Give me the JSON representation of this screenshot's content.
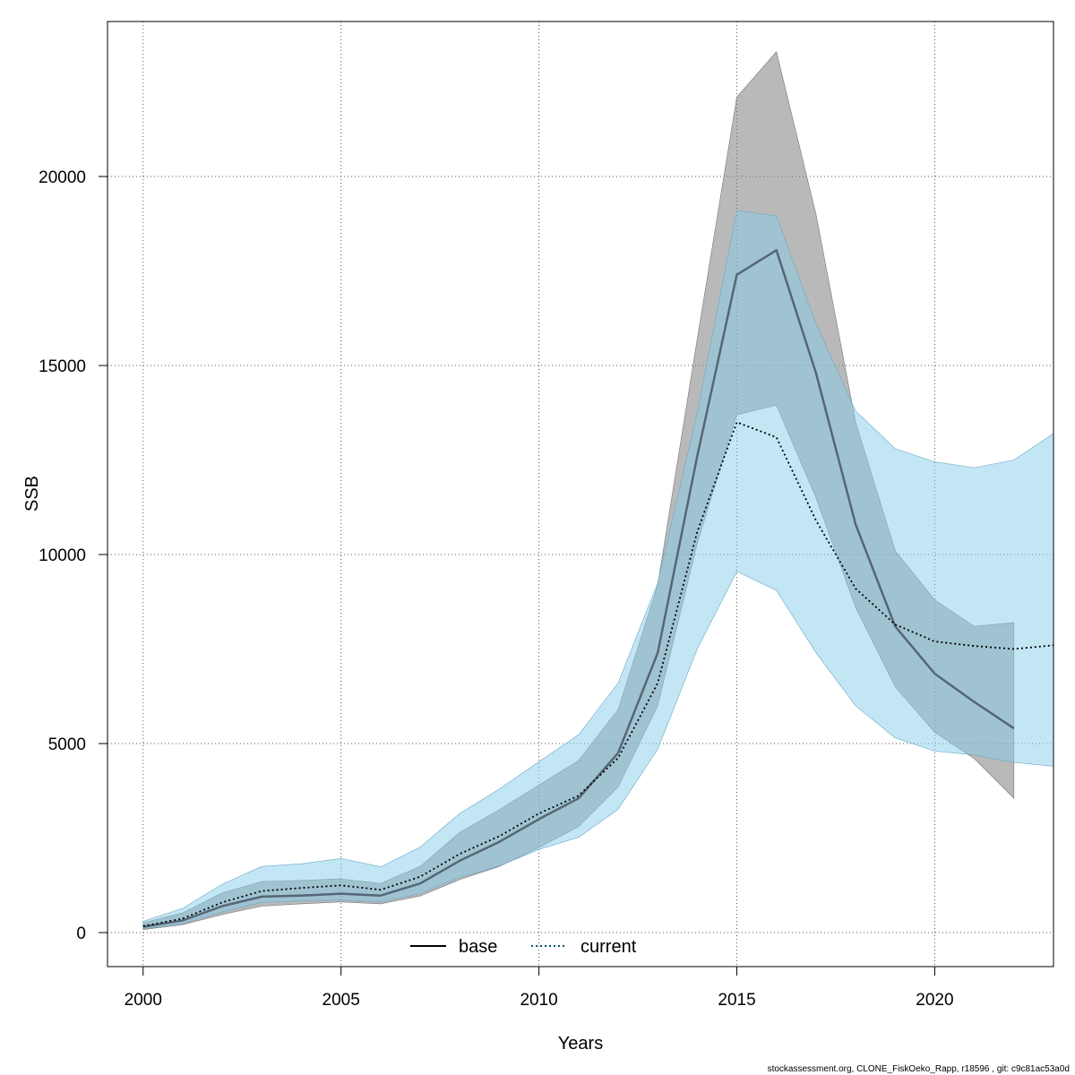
{
  "chart_data": {
    "type": "line",
    "title": "",
    "xlabel": "Years",
    "ylabel": "SSB",
    "xlim": [
      1999.1,
      2023
    ],
    "ylim": [
      -900,
      24100
    ],
    "x_ticks": [
      2000,
      2005,
      2010,
      2015,
      2020
    ],
    "x_tick_labels": [
      "2000",
      "2005",
      "2010",
      "2015",
      "2020"
    ],
    "y_ticks": [
      0,
      5000,
      10000,
      15000,
      20000
    ],
    "y_tick_labels": [
      "0",
      "5000",
      "10000",
      "15000",
      "20000"
    ],
    "grid": true,
    "legend_position": "bottom",
    "series": [
      {
        "name": "base",
        "line_style": "solid",
        "line_color": "#556677",
        "band_color": "#808080",
        "x": [
          2000,
          2001,
          2002,
          2003,
          2004,
          2005,
          2006,
          2007,
          2008,
          2009,
          2010,
          2011,
          2012,
          2013,
          2014,
          2015,
          2016,
          2017,
          2018,
          2019,
          2020,
          2021,
          2022
        ],
        "values": [
          150,
          320,
          700,
          950,
          980,
          1030,
          980,
          1300,
          1900,
          2400,
          3000,
          3550,
          4750,
          7400,
          12600,
          17400,
          18050,
          14800,
          10800,
          8100,
          6850,
          6100,
          5400
        ],
        "upper": [
          260,
          520,
          1050,
          1350,
          1380,
          1420,
          1300,
          1750,
          2650,
          3250,
          3900,
          4550,
          5900,
          9200,
          15700,
          22100,
          23300,
          19000,
          13500,
          10100,
          8800,
          8100,
          8200
        ],
        "lower": [
          80,
          210,
          480,
          700,
          760,
          810,
          760,
          970,
          1400,
          1750,
          2250,
          2800,
          3850,
          6000,
          10300,
          13700,
          13950,
          11500,
          8600,
          6500,
          5300,
          4600,
          3550
        ]
      },
      {
        "name": "current",
        "line_style": "dotted",
        "line_color": "#000000",
        "band_color": "#87ceeb",
        "x": [
          2000,
          2001,
          2002,
          2003,
          2004,
          2005,
          2006,
          2007,
          2008,
          2009,
          2010,
          2011,
          2012,
          2013,
          2014,
          2015,
          2016,
          2017,
          2018,
          2019,
          2020,
          2021,
          2022,
          2023
        ],
        "values": [
          170,
          370,
          800,
          1100,
          1180,
          1250,
          1130,
          1480,
          2080,
          2550,
          3150,
          3620,
          4620,
          6600,
          10600,
          13500,
          13100,
          10900,
          9100,
          8150,
          7700,
          7580,
          7500,
          7600
        ],
        "upper": [
          300,
          640,
          1280,
          1750,
          1820,
          1960,
          1740,
          2260,
          3150,
          3800,
          4520,
          5230,
          6600,
          9250,
          13750,
          19100,
          18950,
          16100,
          13800,
          12800,
          12450,
          12300,
          12500,
          13200
        ],
        "lower": [
          100,
          240,
          540,
          800,
          840,
          860,
          810,
          1030,
          1460,
          1760,
          2200,
          2520,
          3260,
          4850,
          7500,
          9550,
          9050,
          7400,
          6000,
          5150,
          4800,
          4700,
          4500,
          4400
        ]
      }
    ]
  },
  "legend": {
    "items": [
      {
        "label": "base",
        "line_style": "solid",
        "color": "#000000"
      },
      {
        "label": "current",
        "line_style": "dotted",
        "color": "#00527a"
      }
    ]
  },
  "footer": {
    "text": "stockassessment.org, CLONE_FiskOeko_Rapp, r18596 , git: c9c81ac53a0d"
  },
  "colors": {
    "grid": "#555555",
    "frame": "#000000",
    "base_band": "#808080",
    "current_band": "#87ceeb"
  }
}
